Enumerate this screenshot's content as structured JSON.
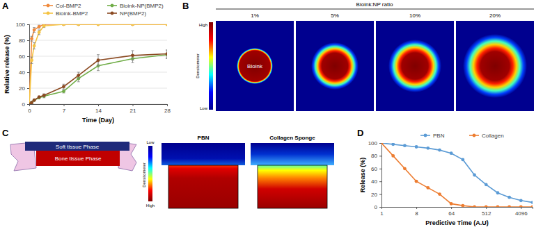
{
  "chart_data": [
    {
      "panel_label": "A",
      "type": "line",
      "x": [
        0,
        0.5,
        1,
        2,
        3,
        7,
        10,
        14,
        21,
        28
      ],
      "xlabel": "Time (Day)",
      "ylabel": "Relative release (%)",
      "xlim": [
        0,
        28
      ],
      "ylim": [
        0,
        100
      ],
      "xticks": [
        0,
        7,
        14,
        21,
        28
      ],
      "yticks": [
        0,
        20,
        40,
        60,
        80,
        100
      ],
      "grid": true,
      "legend": "top",
      "marker": "circle",
      "series": [
        {
          "name": "Col-BMP2",
          "color": "#f08a3c",
          "values": [
            0,
            82,
            93,
            97,
            100,
            100,
            100,
            100,
            100,
            100
          ],
          "errors": [
            0,
            3,
            3,
            2,
            1,
            1,
            1,
            1,
            1,
            1
          ]
        },
        {
          "name": "Bioink-NP(BMP2)",
          "color": "#70ad47",
          "values": [
            0,
            2,
            5,
            8,
            10,
            16,
            32,
            48,
            57,
            62
          ],
          "errors": [
            0,
            1,
            1,
            1,
            2,
            2,
            4,
            6,
            5,
            5
          ]
        },
        {
          "name": "Bioink-BMP2",
          "color": "#f5c342",
          "values": [
            0,
            55,
            73,
            90,
            98,
            100,
            100,
            100,
            100,
            100
          ],
          "errors": [
            0,
            4,
            4,
            3,
            2,
            1,
            1,
            1,
            1,
            1
          ]
        },
        {
          "name": "NP(BMP2)",
          "color": "#8b4a22",
          "values": [
            0,
            2,
            5,
            9,
            11,
            22,
            36,
            55,
            61,
            63
          ],
          "errors": [
            0,
            1,
            1,
            1,
            2,
            3,
            4,
            7,
            6,
            5
          ]
        }
      ]
    },
    {
      "panel_label": "D",
      "type": "line",
      "log": "x",
      "x": [
        1,
        2,
        4,
        8,
        16,
        32,
        64,
        128,
        256,
        512,
        1024,
        2048,
        4096,
        8192
      ],
      "xlabel": "Predictive Time (A.U)",
      "ylabel": "Release (%)",
      "xlim": [
        1,
        8192
      ],
      "ylim": [
        0,
        100
      ],
      "xticks": [
        1,
        8,
        64,
        512,
        4096
      ],
      "yticks": [
        0,
        20,
        40,
        60,
        80,
        100
      ],
      "grid": false,
      "legend": "top",
      "marker": "circle",
      "series": [
        {
          "name": "PBN",
          "color": "#5b9bd5",
          "values": [
            100,
            98,
            96,
            94,
            92,
            89,
            84,
            74,
            50,
            35,
            22,
            15,
            10,
            7
          ]
        },
        {
          "name": "Collagen",
          "color": "#ed7d31",
          "values": [
            100,
            80,
            60,
            40,
            30,
            20,
            5,
            2,
            0,
            0,
            0,
            0,
            0,
            0
          ]
        }
      ]
    }
  ],
  "panel_b": {
    "label": "B",
    "title": "Bioink:NP ratio",
    "columns": [
      "1%",
      "5%",
      "10%",
      "20%"
    ],
    "center_label": "Bioink",
    "colorbar": {
      "label": "Densitometer",
      "high": "High",
      "low": "Low"
    }
  },
  "panel_c": {
    "label": "C",
    "schematic": {
      "top": "Soft tissue Phase",
      "bottom": "Bone tissue Phase"
    },
    "colorbar": {
      "label": "Densitometer",
      "low": "Low",
      "high": "High"
    },
    "images": [
      "PBN",
      "Collagen Sponge"
    ]
  }
}
